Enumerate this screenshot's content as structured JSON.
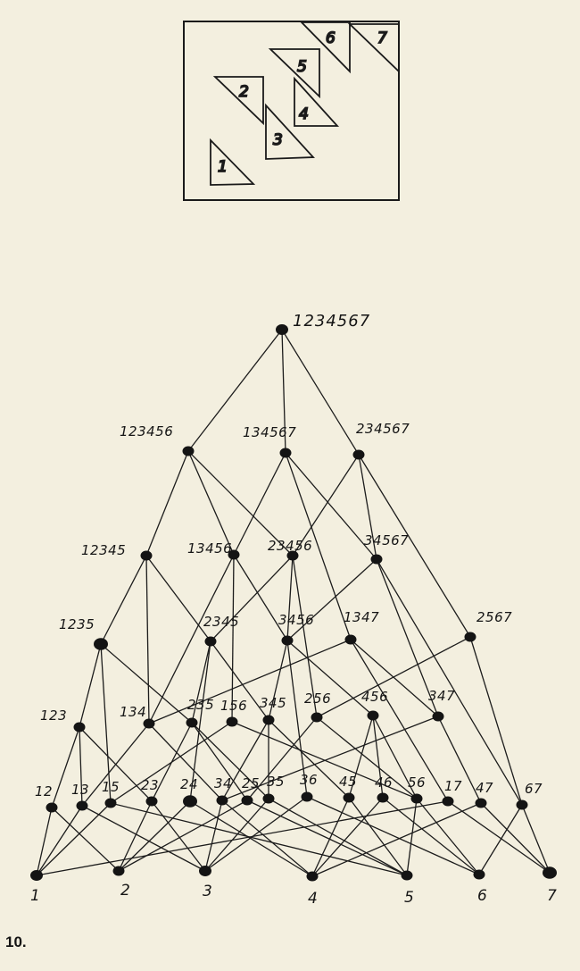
{
  "figure_number": "10.",
  "inset_triangles": [
    "1",
    "2",
    "3",
    "4",
    "5",
    "6",
    "7"
  ],
  "lattice": {
    "nodes": [
      "1234567",
      "123456",
      "134567",
      "234567",
      "12345",
      "13456",
      "23456",
      "34567",
      "1235",
      "2345",
      "3456",
      "1347",
      "2567",
      "123",
      "134",
      "235",
      "156",
      "345",
      "256",
      "456",
      "347",
      "12",
      "13",
      "15",
      "23",
      "24",
      "34",
      "25",
      "35",
      "36",
      "45",
      "46",
      "56",
      "17",
      "47",
      "67",
      "1",
      "2",
      "3",
      "4",
      "5",
      "6",
      "7"
    ]
  }
}
